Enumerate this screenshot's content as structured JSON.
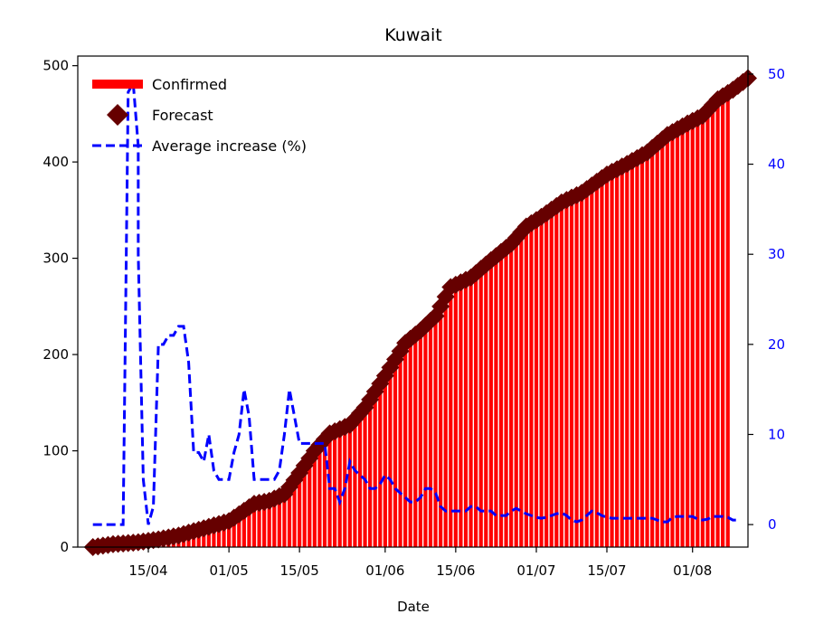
{
  "chart_data": {
    "type": "bar+line",
    "title": "Kuwait",
    "xlabel": "Date",
    "ylabel": "",
    "y2label": "",
    "grid": false,
    "legend_position": "top-left",
    "x_tick_labels": [
      "15/04",
      "01/05",
      "15/05",
      "01/06",
      "15/06",
      "01/07",
      "15/07",
      "01/08"
    ],
    "x_tick_dates": [
      "2020-04-15",
      "2020-05-01",
      "2020-05-15",
      "2020-06-01",
      "2020-06-15",
      "2020-07-01",
      "2020-07-15",
      "2020-08-01"
    ],
    "xlim": [
      "2020-04-01",
      "2020-08-12"
    ],
    "ylim": [
      0,
      510
    ],
    "yticks": [
      0,
      100,
      200,
      300,
      400,
      500
    ],
    "y2lim": [
      -2.5,
      52
    ],
    "y2ticks": [
      0,
      10,
      20,
      30,
      40,
      50
    ],
    "colors": {
      "confirmed": "#ff0000",
      "forecast": "#660000",
      "average": "#0000ff",
      "right_axis": "#0000ff"
    },
    "legend": [
      {
        "name": "Confirmed",
        "marker": "bar"
      },
      {
        "name": "Forecast",
        "marker": "diamond"
      },
      {
        "name": "Average increase (%)",
        "marker": "dashed-line"
      }
    ],
    "confirmed": {
      "name": "Confirmed",
      "start_date": "2020-04-04",
      "end_date": "2020-08-08",
      "keypoints": [
        [
          "2020-04-04",
          0
        ],
        [
          "2020-04-08",
          3
        ],
        [
          "2020-04-13",
          5
        ],
        [
          "2020-04-17",
          8
        ],
        [
          "2020-04-21",
          12
        ],
        [
          "2020-04-25",
          18
        ],
        [
          "2020-04-29",
          24
        ],
        [
          "2020-05-01",
          27
        ],
        [
          "2020-05-03",
          34
        ],
        [
          "2020-05-06",
          45
        ],
        [
          "2020-05-09",
          48
        ],
        [
          "2020-05-12",
          55
        ],
        [
          "2020-05-15",
          77
        ],
        [
          "2020-05-18",
          100
        ],
        [
          "2020-05-21",
          118
        ],
        [
          "2020-05-25",
          127
        ],
        [
          "2020-05-28",
          145
        ],
        [
          "2020-06-01",
          178
        ],
        [
          "2020-06-05",
          212
        ],
        [
          "2020-06-08",
          225
        ],
        [
          "2020-06-11",
          240
        ],
        [
          "2020-06-14",
          270
        ],
        [
          "2020-06-18",
          280
        ],
        [
          "2020-06-22",
          298
        ],
        [
          "2020-06-26",
          315
        ],
        [
          "2020-06-29",
          333
        ],
        [
          "2020-07-02",
          343
        ],
        [
          "2020-07-06",
          358
        ],
        [
          "2020-07-10",
          368
        ],
        [
          "2020-07-15",
          387
        ],
        [
          "2020-07-19",
          398
        ],
        [
          "2020-07-23",
          410
        ],
        [
          "2020-07-27",
          428
        ],
        [
          "2020-07-31",
          440
        ],
        [
          "2020-08-03",
          448
        ],
        [
          "2020-08-05",
          460
        ],
        [
          "2020-08-08",
          465
        ]
      ]
    },
    "forecast": {
      "name": "Forecast",
      "start_date": "2020-04-04",
      "end_date": "2020-08-12",
      "keypoints": [
        [
          "2020-04-04",
          0
        ],
        [
          "2020-04-08",
          3
        ],
        [
          "2020-04-13",
          5
        ],
        [
          "2020-04-17",
          8
        ],
        [
          "2020-04-21",
          12
        ],
        [
          "2020-04-25",
          18
        ],
        [
          "2020-04-29",
          24
        ],
        [
          "2020-05-01",
          27
        ],
        [
          "2020-05-03",
          34
        ],
        [
          "2020-05-06",
          45
        ],
        [
          "2020-05-09",
          48
        ],
        [
          "2020-05-12",
          55
        ],
        [
          "2020-05-15",
          77
        ],
        [
          "2020-05-18",
          100
        ],
        [
          "2020-05-21",
          118
        ],
        [
          "2020-05-25",
          127
        ],
        [
          "2020-05-28",
          145
        ],
        [
          "2020-06-01",
          178
        ],
        [
          "2020-06-05",
          212
        ],
        [
          "2020-06-08",
          225
        ],
        [
          "2020-06-11",
          240
        ],
        [
          "2020-06-14",
          270
        ],
        [
          "2020-06-18",
          280
        ],
        [
          "2020-06-22",
          298
        ],
        [
          "2020-06-26",
          315
        ],
        [
          "2020-06-29",
          333
        ],
        [
          "2020-07-02",
          343
        ],
        [
          "2020-07-06",
          358
        ],
        [
          "2020-07-10",
          368
        ],
        [
          "2020-07-15",
          387
        ],
        [
          "2020-07-19",
          398
        ],
        [
          "2020-07-23",
          410
        ],
        [
          "2020-07-27",
          428
        ],
        [
          "2020-07-31",
          440
        ],
        [
          "2020-08-03",
          448
        ],
        [
          "2020-08-06",
          465
        ],
        [
          "2020-08-09",
          475
        ],
        [
          "2020-08-12",
          487
        ]
      ]
    },
    "average_increase": {
      "name": "Average increase (%)",
      "axis": "right",
      "points": [
        [
          "2020-04-04",
          0
        ],
        [
          "2020-04-10",
          0
        ],
        [
          "2020-04-11",
          48
        ],
        [
          "2020-04-12",
          49
        ],
        [
          "2020-04-13",
          42
        ],
        [
          "2020-04-13",
          30
        ],
        [
          "2020-04-14",
          5
        ],
        [
          "2020-04-15",
          0
        ],
        [
          "2020-04-16",
          2
        ],
        [
          "2020-04-17",
          20
        ],
        [
          "2020-04-18",
          20
        ],
        [
          "2020-04-19",
          21
        ],
        [
          "2020-04-20",
          21
        ],
        [
          "2020-04-21",
          22
        ],
        [
          "2020-04-22",
          22
        ],
        [
          "2020-04-23",
          18
        ],
        [
          "2020-04-24",
          8
        ],
        [
          "2020-04-25",
          8
        ],
        [
          "2020-04-26",
          7
        ],
        [
          "2020-04-27",
          10
        ],
        [
          "2020-04-28",
          6
        ],
        [
          "2020-04-29",
          5
        ],
        [
          "2020-04-30",
          5
        ],
        [
          "2020-05-01",
          5
        ],
        [
          "2020-05-02",
          8
        ],
        [
          "2020-05-03",
          10
        ],
        [
          "2020-05-04",
          15
        ],
        [
          "2020-05-05",
          12
        ],
        [
          "2020-05-06",
          5
        ],
        [
          "2020-05-07",
          5
        ],
        [
          "2020-05-08",
          5
        ],
        [
          "2020-05-09",
          5
        ],
        [
          "2020-05-10",
          5
        ],
        [
          "2020-05-11",
          6
        ],
        [
          "2020-05-12",
          10
        ],
        [
          "2020-05-13",
          15
        ],
        [
          "2020-05-14",
          12
        ],
        [
          "2020-05-15",
          9
        ],
        [
          "2020-05-16",
          9
        ],
        [
          "2020-05-17",
          9
        ],
        [
          "2020-05-18",
          9
        ],
        [
          "2020-05-19",
          9
        ],
        [
          "2020-05-20",
          9
        ],
        [
          "2020-05-21",
          4
        ],
        [
          "2020-05-22",
          4
        ],
        [
          "2020-05-23",
          2.5
        ],
        [
          "2020-05-24",
          4
        ],
        [
          "2020-05-25",
          7
        ],
        [
          "2020-05-26",
          6
        ],
        [
          "2020-05-27",
          5.5
        ],
        [
          "2020-05-28",
          5
        ],
        [
          "2020-05-29",
          4
        ],
        [
          "2020-05-30",
          4
        ],
        [
          "2020-05-31",
          4.5
        ],
        [
          "2020-06-01",
          5.5
        ],
        [
          "2020-06-02",
          5
        ],
        [
          "2020-06-03",
          4
        ],
        [
          "2020-06-04",
          3.5
        ],
        [
          "2020-06-05",
          3
        ],
        [
          "2020-06-06",
          2.5
        ],
        [
          "2020-06-07",
          2.5
        ],
        [
          "2020-06-08",
          3
        ],
        [
          "2020-06-09",
          4
        ],
        [
          "2020-06-10",
          4
        ],
        [
          "2020-06-11",
          3.5
        ],
        [
          "2020-06-12",
          2
        ],
        [
          "2020-06-13",
          1.5
        ],
        [
          "2020-06-14",
          1.5
        ],
        [
          "2020-06-15",
          1.5
        ],
        [
          "2020-06-16",
          1.5
        ],
        [
          "2020-06-17",
          1.5
        ],
        [
          "2020-06-18",
          2
        ],
        [
          "2020-06-19",
          2
        ],
        [
          "2020-06-20",
          1.5
        ],
        [
          "2020-06-21",
          1.5
        ],
        [
          "2020-06-22",
          1.5
        ],
        [
          "2020-06-23",
          1
        ],
        [
          "2020-06-24",
          1
        ],
        [
          "2020-06-25",
          1
        ],
        [
          "2020-06-26",
          1.5
        ],
        [
          "2020-06-27",
          1.8
        ],
        [
          "2020-06-28",
          1.5
        ],
        [
          "2020-06-29",
          1.2
        ],
        [
          "2020-06-30",
          1
        ],
        [
          "2020-07-01",
          0.8
        ],
        [
          "2020-07-02",
          0.7
        ],
        [
          "2020-07-03",
          0.8
        ],
        [
          "2020-07-04",
          1
        ],
        [
          "2020-07-05",
          1.2
        ],
        [
          "2020-07-06",
          1.3
        ],
        [
          "2020-07-07",
          1
        ],
        [
          "2020-07-08",
          0.5
        ],
        [
          "2020-07-09",
          0.3
        ],
        [
          "2020-07-10",
          0.5
        ],
        [
          "2020-07-11",
          1
        ],
        [
          "2020-07-12",
          1.5
        ],
        [
          "2020-07-13",
          1.3
        ],
        [
          "2020-07-14",
          1
        ],
        [
          "2020-07-15",
          0.8
        ],
        [
          "2020-07-16",
          0.7
        ],
        [
          "2020-07-17",
          0.7
        ],
        [
          "2020-07-18",
          0.7
        ],
        [
          "2020-07-19",
          0.7
        ],
        [
          "2020-07-20",
          0.7
        ],
        [
          "2020-07-21",
          0.7
        ],
        [
          "2020-07-22",
          0.7
        ],
        [
          "2020-07-23",
          0.7
        ],
        [
          "2020-07-24",
          0.7
        ],
        [
          "2020-07-25",
          0.5
        ],
        [
          "2020-07-26",
          0.3
        ],
        [
          "2020-07-27",
          0.3
        ],
        [
          "2020-07-28",
          0.8
        ],
        [
          "2020-07-29",
          0.9
        ],
        [
          "2020-07-30",
          0.9
        ],
        [
          "2020-07-31",
          0.9
        ],
        [
          "2020-08-01",
          0.9
        ],
        [
          "2020-08-02",
          0.6
        ],
        [
          "2020-08-03",
          0.5
        ],
        [
          "2020-08-04",
          0.6
        ],
        [
          "2020-08-05",
          0.9
        ],
        [
          "2020-08-06",
          0.9
        ],
        [
          "2020-08-07",
          0.9
        ],
        [
          "2020-08-08",
          0.8
        ],
        [
          "2020-08-09",
          0.5
        ],
        [
          "2020-08-10",
          0.5
        ]
      ]
    }
  }
}
